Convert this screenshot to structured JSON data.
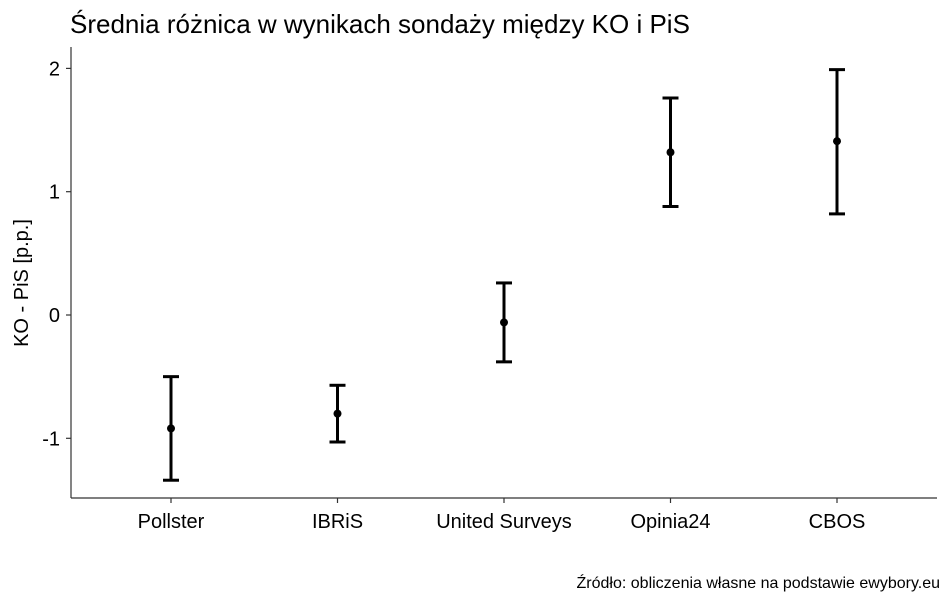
{
  "chart_data": {
    "type": "errorbar",
    "title": "Średnia różnica w wynikach sondaży między KO i PiS",
    "ylabel": "KO - PiS [p.p.]",
    "xlabel": "",
    "caption": "Źródło: obliczenia własne na podstawie ewybory.eu",
    "categories": [
      "Pollster",
      "IBRiS",
      "United Surveys",
      "Opinia24",
      "CBOS"
    ],
    "series": [
      {
        "values": [
          -0.92,
          -0.8,
          -0.06,
          1.32,
          1.41
        ],
        "lower": [
          -1.34,
          -1.03,
          -0.38,
          0.88,
          0.82
        ],
        "upper": [
          -0.5,
          -0.57,
          0.26,
          1.76,
          1.99
        ]
      }
    ],
    "yticks": [
      -1,
      0,
      1,
      2
    ],
    "ytick_labels": [
      "-1",
      "0",
      "1",
      "2"
    ],
    "ylim": [
      -1.5,
      2.2
    ],
    "grid": false,
    "colors": {
      "marks": "#000000",
      "axis": "#333333"
    }
  }
}
